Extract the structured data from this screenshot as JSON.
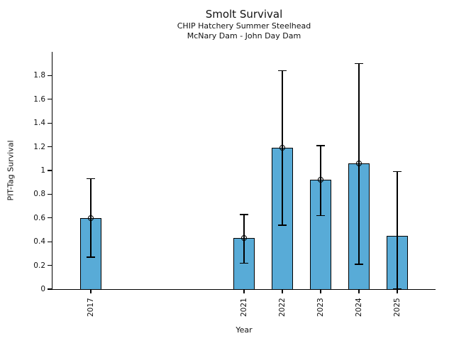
{
  "chart_data": {
    "type": "bar",
    "title": "Smolt Survival",
    "subtitle1": "CHIP Hatchery Summer Steelhead",
    "subtitle2": "McNary Dam - John Day Dam",
    "xlabel": "Year",
    "ylabel": "PIT-Tag Survival",
    "xlim": [
      2016,
      2026
    ],
    "ylim": [
      0,
      2.0
    ],
    "ytick_values": [
      0,
      0.2,
      0.4,
      0.6,
      0.8,
      1,
      1.2,
      1.4,
      1.6,
      1.8
    ],
    "ytick_labels": [
      "0",
      "0.2",
      "0.4",
      "0.6",
      "0.8",
      "1",
      "1.2",
      "1.4",
      "1.6",
      "1.8"
    ],
    "bar_color": "#58abd7",
    "edge_color": "#000000",
    "legend": "none",
    "grid": false,
    "categories": [
      2017,
      2021,
      2022,
      2023,
      2024,
      2025
    ],
    "series": [
      {
        "name": "PIT-Tag Survival",
        "points": [
          {
            "year": 2017,
            "value": 0.6,
            "lower": 0.27,
            "upper": 0.93,
            "marker": true
          },
          {
            "year": 2021,
            "value": 0.43,
            "lower": 0.22,
            "upper": 0.63,
            "marker": true
          },
          {
            "year": 2022,
            "value": 1.19,
            "lower": 0.54,
            "upper": 1.84,
            "marker": true
          },
          {
            "year": 2023,
            "value": 0.92,
            "lower": 0.62,
            "upper": 1.21,
            "marker": true
          },
          {
            "year": 2024,
            "value": 1.06,
            "lower": 0.21,
            "upper": 1.9,
            "marker": true
          },
          {
            "year": 2025,
            "value": 0.45,
            "lower": 0.0,
            "upper": 0.99,
            "marker": false
          }
        ]
      }
    ]
  }
}
